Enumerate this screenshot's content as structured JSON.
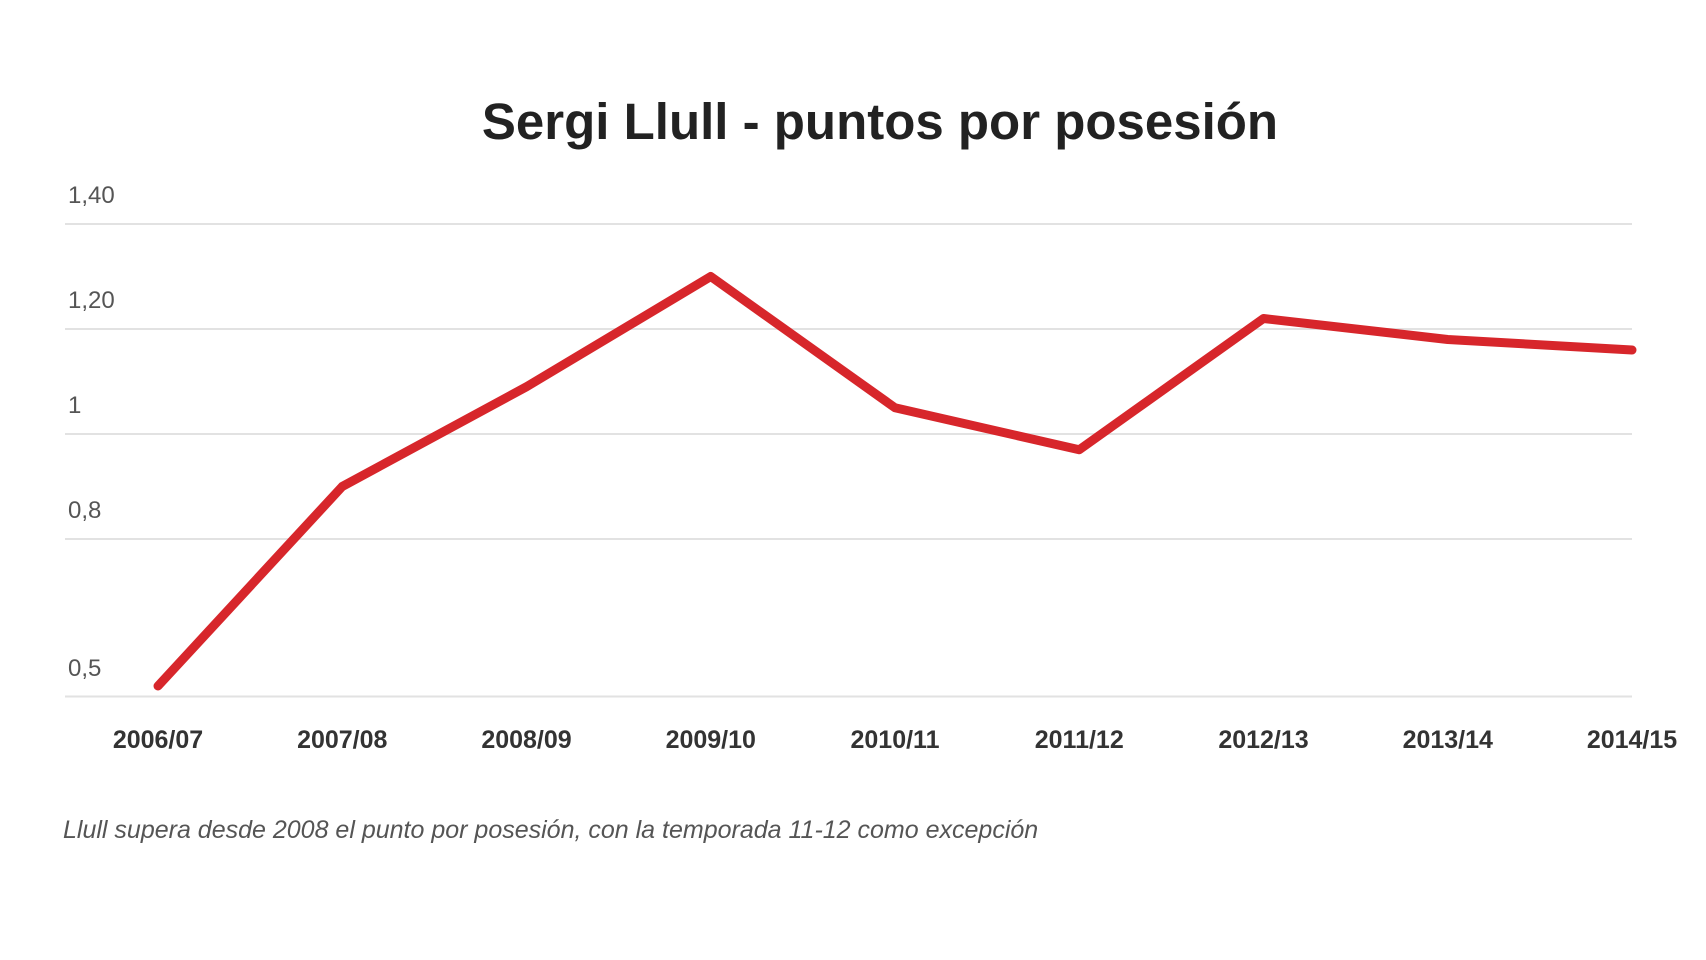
{
  "chart_data": {
    "type": "line",
    "title": "Sergi Llull - puntos por posesión",
    "xlabel": "",
    "ylabel": "",
    "categories": [
      "2006/07",
      "2007/08",
      "2008/09",
      "2009/10",
      "2010/11",
      "2011/12",
      "2012/13",
      "2013/14",
      "2014/15"
    ],
    "series": [
      {
        "name": "Sergi Llull - puntos por posesión",
        "color": "#d7262b",
        "values": [
          0.52,
          0.9,
          1.09,
          1.3,
          1.05,
          0.97,
          1.22,
          1.18,
          1.16
        ]
      }
    ],
    "yticks": [
      {
        "value": 1.4,
        "label": "1,40"
      },
      {
        "value": 1.2,
        "label": "1,20"
      },
      {
        "value": 1.0,
        "label": "1"
      },
      {
        "value": 0.8,
        "label": "0,8"
      },
      {
        "value": 0.5,
        "label": "0,5"
      }
    ],
    "ylim": [
      0.5,
      1.4
    ],
    "grid": true,
    "legend": "none",
    "caption": "Llull supera desde 2008 el punto por posesión, con la temporada 11-12 como excepción"
  },
  "colors": {
    "line": "#d7262b",
    "grid": "#e2e2e2",
    "title": "#222222"
  }
}
